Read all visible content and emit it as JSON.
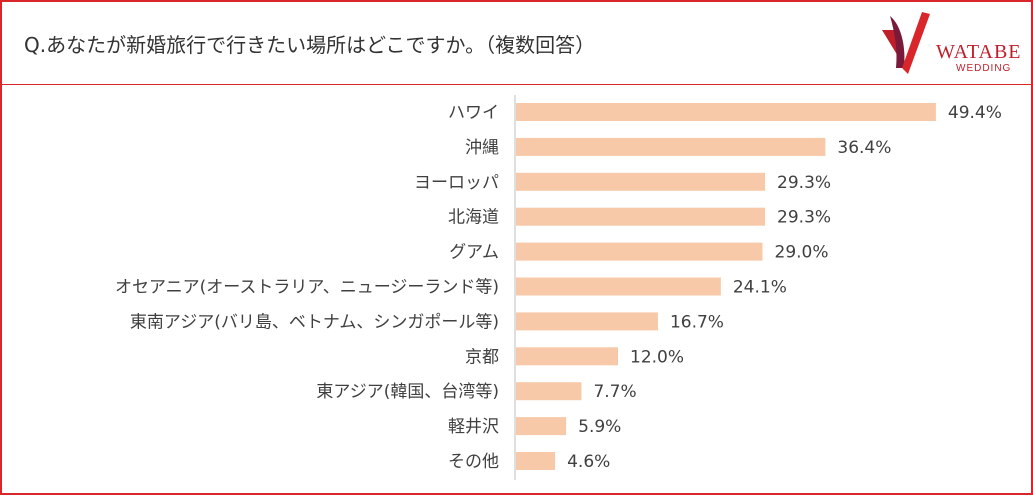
{
  "header": {
    "question": "Q.あなたが新婚旅行で行きたい場所はどこですか。（複数回答）",
    "logo_text": "WATABE",
    "logo_sub": "WEDDING",
    "logo_icon": "watabe-logo-icon"
  },
  "colors": {
    "border": "#d9262b",
    "bar": "#f7c9a8",
    "axis": "#bfbfbf",
    "brand": "#c01f2a"
  },
  "chart_data": {
    "type": "bar",
    "orientation": "horizontal",
    "title": "Q.あなたが新婚旅行で行きたい場所はどこですか。（複数回答）",
    "xlabel": "",
    "ylabel": "",
    "xlim": [
      0,
      50
    ],
    "grid": false,
    "categories": [
      "ハワイ",
      "沖縄",
      "ヨーロッパ",
      "北海道",
      "グアム",
      "オセアニア(オーストラリア、ニュージーランド等)",
      "東南アジア(バリ島、ベトナム、シンガポール等)",
      "京都",
      "東アジア(韓国、台湾等)",
      "軽井沢",
      "その他"
    ],
    "values": [
      49.4,
      36.4,
      29.3,
      29.3,
      29.0,
      24.1,
      16.7,
      12.0,
      7.7,
      5.9,
      4.6
    ],
    "value_labels": [
      "49.4%",
      "36.4%",
      "29.3%",
      "29.3%",
      "29.0%",
      "24.1%",
      "16.7%",
      "12.0%",
      "7.7%",
      "5.9%",
      "4.6%"
    ]
  }
}
